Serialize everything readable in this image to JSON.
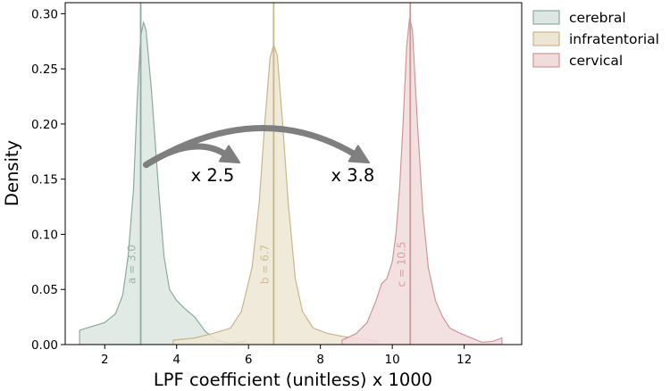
{
  "chart_data": {
    "type": "area",
    "xlabel": "LPF coefficient (unitless) x 1000",
    "ylabel": "Density",
    "xlim": [
      0.9,
      13.6
    ],
    "ylim": [
      0,
      0.31
    ],
    "xticks": [
      2,
      4,
      6,
      8,
      10,
      12
    ],
    "yticks": [
      0.0,
      0.05,
      0.1,
      0.15,
      0.2,
      0.25,
      0.3
    ],
    "grid": false,
    "legend_position": "top-right",
    "series": [
      {
        "name": "cerebral",
        "fill": "#dde6e2",
        "stroke": "#8aab9f",
        "mean": 3.0,
        "mean_label": "a = 3.0",
        "points": [
          [
            1.3,
            0.0
          ],
          [
            1.3,
            0.013
          ],
          [
            1.6,
            0.016
          ],
          [
            2.0,
            0.02
          ],
          [
            2.3,
            0.028
          ],
          [
            2.5,
            0.045
          ],
          [
            2.65,
            0.08
          ],
          [
            2.8,
            0.14
          ],
          [
            2.9,
            0.22
          ],
          [
            3.0,
            0.28
          ],
          [
            3.08,
            0.292
          ],
          [
            3.15,
            0.285
          ],
          [
            3.3,
            0.23
          ],
          [
            3.5,
            0.14
          ],
          [
            3.65,
            0.08
          ],
          [
            3.8,
            0.05
          ],
          [
            4.0,
            0.04
          ],
          [
            4.25,
            0.032
          ],
          [
            4.5,
            0.025
          ],
          [
            4.8,
            0.012
          ],
          [
            5.1,
            0.004
          ],
          [
            5.5,
            0.001
          ],
          [
            5.9,
            0.003
          ],
          [
            6.0,
            0.0
          ]
        ]
      },
      {
        "name": "infratentorial",
        "fill": "#ede6d4",
        "stroke": "#c9b68a",
        "mean": 6.7,
        "mean_label": "b = 6.7",
        "points": [
          [
            3.9,
            0.0
          ],
          [
            3.9,
            0.004
          ],
          [
            4.5,
            0.006
          ],
          [
            5.0,
            0.01
          ],
          [
            5.5,
            0.015
          ],
          [
            5.8,
            0.03
          ],
          [
            6.1,
            0.07
          ],
          [
            6.3,
            0.13
          ],
          [
            6.45,
            0.2
          ],
          [
            6.6,
            0.26
          ],
          [
            6.7,
            0.272
          ],
          [
            6.8,
            0.262
          ],
          [
            6.95,
            0.2
          ],
          [
            7.1,
            0.13
          ],
          [
            7.3,
            0.06
          ],
          [
            7.5,
            0.03
          ],
          [
            7.8,
            0.015
          ],
          [
            8.2,
            0.01
          ],
          [
            8.7,
            0.007
          ],
          [
            9.2,
            0.005
          ],
          [
            9.6,
            0.003
          ],
          [
            9.6,
            0.0
          ]
        ]
      },
      {
        "name": "cervical",
        "fill": "#f1dcdd",
        "stroke": "#cf9597",
        "mean": 10.5,
        "mean_label": "c = 10.5",
        "points": [
          [
            8.6,
            0.0
          ],
          [
            8.6,
            0.004
          ],
          [
            9.0,
            0.01
          ],
          [
            9.3,
            0.02
          ],
          [
            9.55,
            0.04
          ],
          [
            9.7,
            0.055
          ],
          [
            9.85,
            0.06
          ],
          [
            10.0,
            0.075
          ],
          [
            10.1,
            0.1
          ],
          [
            10.2,
            0.14
          ],
          [
            10.3,
            0.2
          ],
          [
            10.4,
            0.27
          ],
          [
            10.48,
            0.296
          ],
          [
            10.56,
            0.285
          ],
          [
            10.7,
            0.2
          ],
          [
            10.85,
            0.12
          ],
          [
            11.0,
            0.07
          ],
          [
            11.2,
            0.04
          ],
          [
            11.4,
            0.025
          ],
          [
            11.6,
            0.015
          ],
          [
            11.9,
            0.01
          ],
          [
            12.2,
            0.006
          ],
          [
            12.5,
            0.002
          ],
          [
            12.8,
            0.003
          ],
          [
            13.05,
            0.006
          ],
          [
            13.05,
            0.0
          ]
        ]
      }
    ],
    "annotations": [
      {
        "text": "x 2.5",
        "x": 5.0,
        "y": 0.148
      },
      {
        "text": "x 3.8",
        "x": 8.9,
        "y": 0.148
      }
    ],
    "arrows": [
      {
        "from": [
          3.15,
          0.163
        ],
        "to": [
          5.75,
          0.165
        ],
        "peak_y": 0.177
      },
      {
        "from": [
          3.15,
          0.163
        ],
        "to": [
          9.35,
          0.165
        ],
        "peak_y": 0.194
      }
    ]
  }
}
